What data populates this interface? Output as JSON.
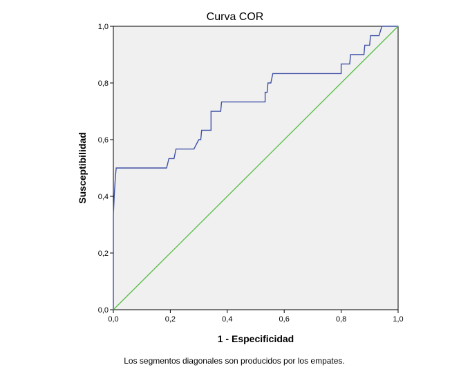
{
  "chart_data": {
    "type": "line",
    "title": "Curva COR",
    "xlabel": "1 - Especificidad",
    "ylabel": "Susceptibilidad",
    "footnote": "Los segmentos diagonales son producidos por los empates.",
    "xlim": [
      0,
      1
    ],
    "ylim": [
      0,
      1
    ],
    "xticks": [
      "0,0",
      "0,2",
      "0,4",
      "0,6",
      "0,8",
      "1,0"
    ],
    "yticks": [
      "0,0",
      "0,2",
      "0,4",
      "0,6",
      "0,8",
      "1,0"
    ],
    "grid": false,
    "plot_background": "#f0f0f0",
    "series": [
      {
        "color": "#3f51a5",
        "x": [
          0,
          0,
          0.003,
          0.007,
          0.007,
          0.01,
          0.01,
          0.187,
          0.195,
          0.213,
          0.22,
          0.283,
          0.3,
          0.307,
          0.31,
          0.343,
          0.343,
          0.377,
          0.38,
          0.533,
          0.533,
          0.54,
          0.543,
          0.553,
          0.56,
          0.8,
          0.8,
          0.83,
          0.833,
          0.88,
          0.883,
          0.9,
          0.903,
          0.933,
          0.943,
          0.95,
          1.0
        ],
        "y": [
          0,
          0.333,
          0.4,
          0.467,
          0.467,
          0.5,
          0.5,
          0.5,
          0.533,
          0.533,
          0.567,
          0.567,
          0.6,
          0.6,
          0.633,
          0.633,
          0.7,
          0.7,
          0.733,
          0.733,
          0.767,
          0.767,
          0.8,
          0.8,
          0.833,
          0.833,
          0.867,
          0.867,
          0.9,
          0.9,
          0.933,
          0.933,
          0.967,
          0.967,
          1.0,
          1.0,
          1.0
        ]
      },
      {
        "color": "#5cbf4a",
        "x": [
          0,
          1
        ],
        "y": [
          0,
          1
        ]
      }
    ]
  }
}
